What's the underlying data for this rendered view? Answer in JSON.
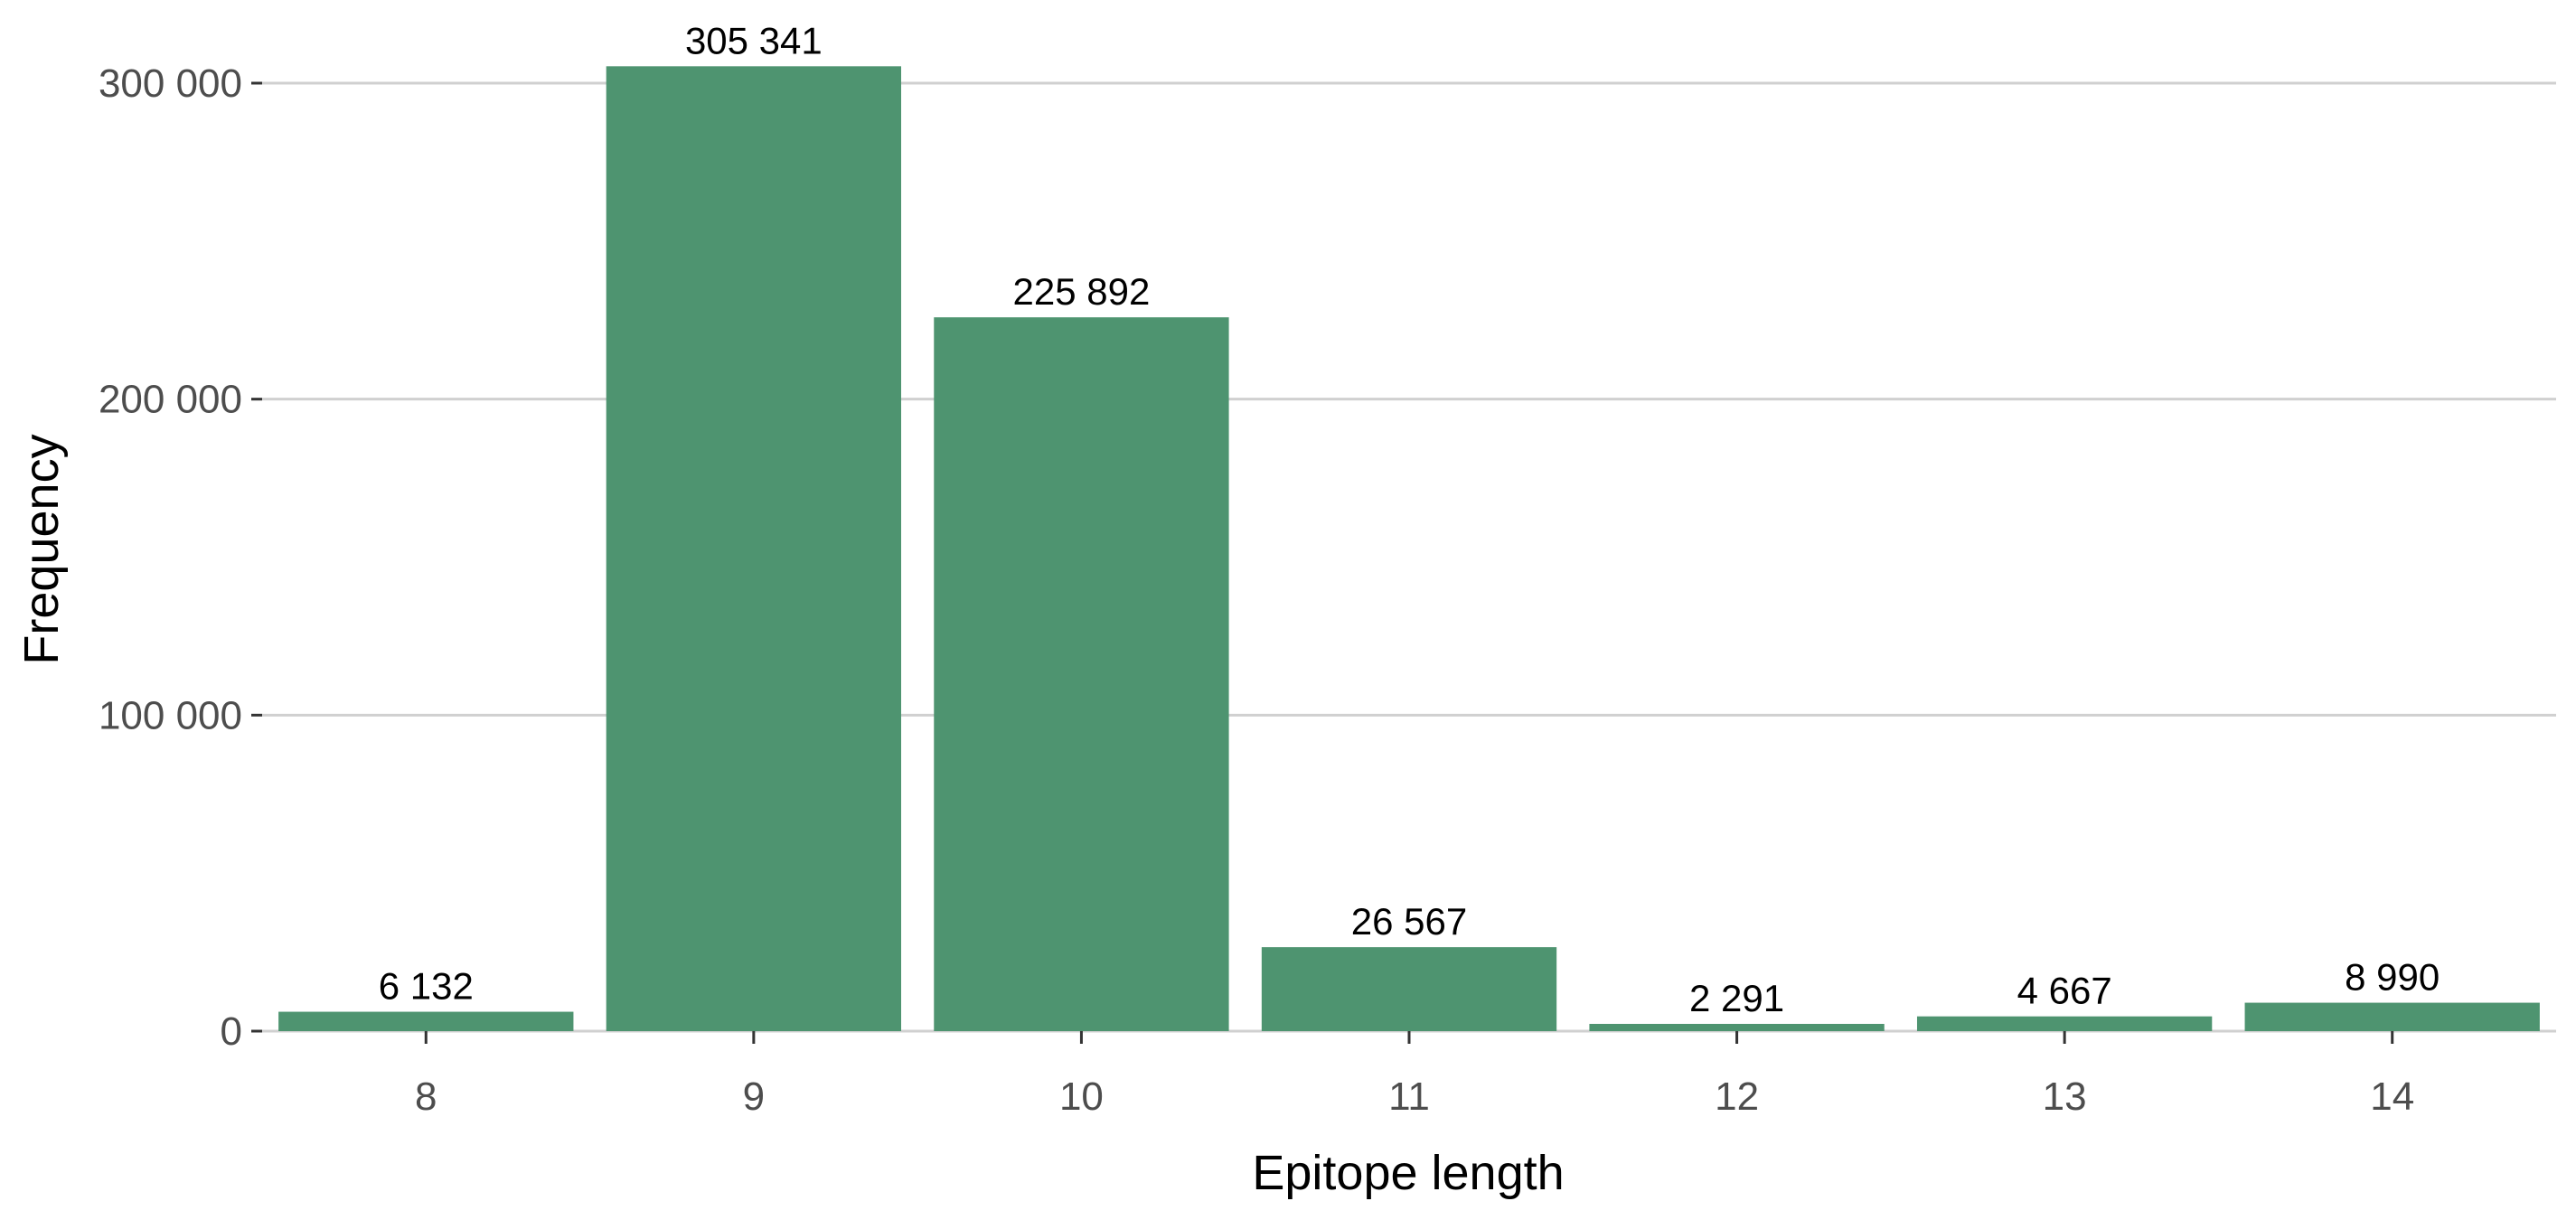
{
  "chart_data": {
    "type": "bar",
    "title": "",
    "xlabel": "Epitope length",
    "ylabel": "Frequency",
    "categories": [
      "8",
      "9",
      "10",
      "11",
      "12",
      "13",
      "14"
    ],
    "values": [
      6132,
      305341,
      225892,
      26567,
      2291,
      4667,
      8990
    ],
    "value_labels": [
      "6 132",
      "305 341",
      "225 892",
      "26 567",
      "2 291",
      "4 667",
      "8 990"
    ],
    "ylim": [
      0,
      320000
    ],
    "yticks": [
      0,
      100000,
      200000,
      300000
    ],
    "ytick_labels": [
      "0",
      "100 000",
      "200 000",
      "300 000"
    ],
    "grid": "horizontal-major",
    "legend": "none",
    "bar_color": "#4e9470"
  }
}
